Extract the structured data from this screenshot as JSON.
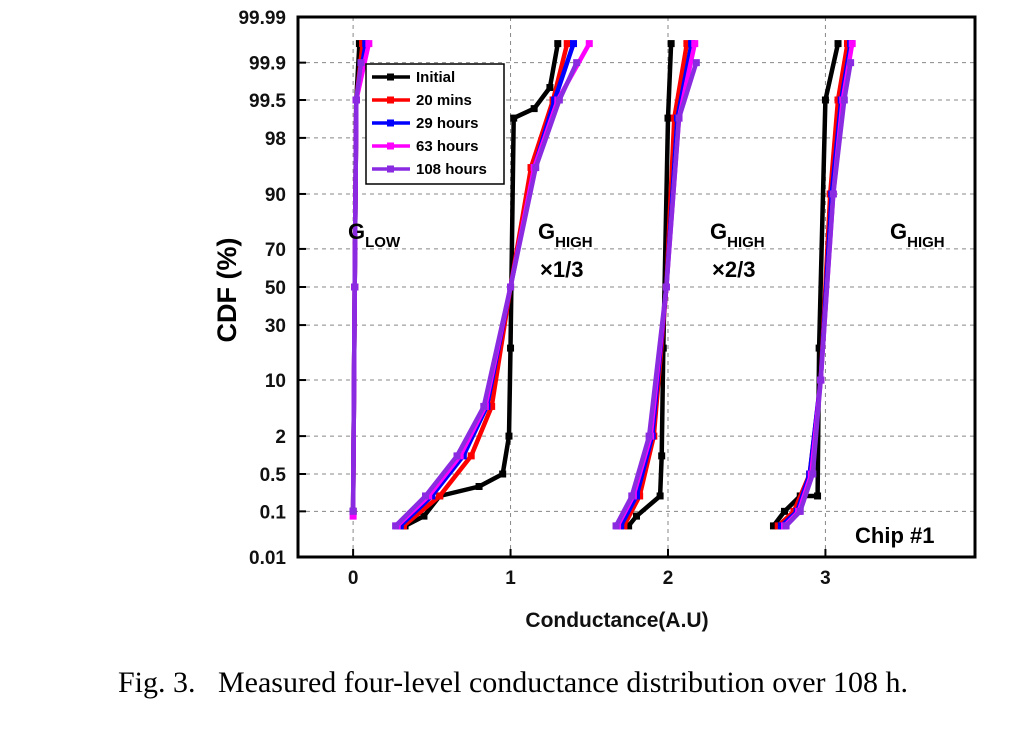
{
  "caption": "Fig. 3.   Measured four-level conductance distribution over 108 h.",
  "chart_data": {
    "type": "line",
    "title": "",
    "xlabel": "Conductance(A.U)",
    "ylabel": "CDF (%)",
    "yscale": "probability (normal)",
    "xlim": [
      -0.35,
      3.95
    ],
    "ylim": [
      0.01,
      99.99
    ],
    "x_ticks": [
      "0",
      "1",
      "2",
      "3"
    ],
    "y_ticks": [
      "0.01",
      "0.1",
      "0.5",
      "2",
      "10",
      "30",
      "50",
      "70",
      "90",
      "98",
      "99.5",
      "99.9",
      "99.99"
    ],
    "grid": "dashed",
    "legend_position": "top-left",
    "annotations": [
      {
        "main": "G",
        "sub": "LOW",
        "line2": ""
      },
      {
        "main": "G",
        "sub": "HIGH",
        "line2": "×1/3"
      },
      {
        "main": "G",
        "sub": "HIGH",
        "line2": "×2/3"
      },
      {
        "main": "G",
        "sub": "HIGH",
        "line2": ""
      },
      {
        "main": "Chip #1",
        "sub": "",
        "line2": ""
      }
    ],
    "series": [
      {
        "name": "Initial",
        "color": "#000000",
        "levels": [
          [
            [
              0.0,
              0.1
            ],
            [
              0.01,
              50
            ],
            [
              0.02,
              99.5
            ],
            [
              0.04,
              99.96
            ]
          ],
          [
            [
              0.33,
              0.05
            ],
            [
              0.45,
              0.08
            ],
            [
              0.55,
              0.2
            ],
            [
              0.8,
              0.3
            ],
            [
              0.95,
              0.5
            ],
            [
              0.99,
              2
            ],
            [
              1.0,
              20
            ],
            [
              1.02,
              99
            ],
            [
              1.15,
              99.3
            ],
            [
              1.25,
              99.7
            ],
            [
              1.3,
              99.96
            ]
          ],
          [
            [
              1.75,
              0.05
            ],
            [
              1.8,
              0.08
            ],
            [
              1.95,
              0.2
            ],
            [
              1.96,
              1
            ],
            [
              1.97,
              20
            ],
            [
              2.0,
              99
            ],
            [
              2.02,
              99.96
            ]
          ],
          [
            [
              2.67,
              0.05
            ],
            [
              2.74,
              0.1
            ],
            [
              2.84,
              0.2
            ],
            [
              2.95,
              0.2
            ],
            [
              2.96,
              20
            ],
            [
              3.0,
              99.5
            ],
            [
              3.08,
              99.96
            ]
          ]
        ]
      },
      {
        "name": "20 mins",
        "color": "#ff0000",
        "levels": [
          [
            [
              0.0,
              0.1
            ],
            [
              0.01,
              50
            ],
            [
              0.02,
              99.5
            ],
            [
              0.06,
              99.96
            ]
          ],
          [
            [
              0.32,
              0.05
            ],
            [
              0.55,
              0.2
            ],
            [
              0.75,
              1
            ],
            [
              0.88,
              5
            ],
            [
              1.0,
              50
            ],
            [
              1.13,
              95
            ],
            [
              1.27,
              99.5
            ],
            [
              1.36,
              99.96
            ]
          ],
          [
            [
              1.72,
              0.05
            ],
            [
              1.82,
              0.2
            ],
            [
              1.91,
              2
            ],
            [
              1.99,
              50
            ],
            [
              2.04,
              99
            ],
            [
              2.12,
              99.96
            ]
          ],
          [
            [
              2.7,
              0.05
            ],
            [
              2.8,
              0.1
            ],
            [
              2.9,
              0.5
            ],
            [
              2.97,
              10
            ],
            [
              3.03,
              90
            ],
            [
              3.08,
              99.5
            ],
            [
              3.14,
              99.96
            ]
          ]
        ]
      },
      {
        "name": "29 hours",
        "color": "#0000ff",
        "levels": [
          [
            [
              0.0,
              0.1
            ],
            [
              0.01,
              50
            ],
            [
              0.02,
              99.5
            ],
            [
              0.08,
              99.96
            ]
          ],
          [
            [
              0.3,
              0.05
            ],
            [
              0.5,
              0.2
            ],
            [
              0.7,
              1
            ],
            [
              0.85,
              5
            ],
            [
              1.0,
              50
            ],
            [
              1.15,
              95
            ],
            [
              1.28,
              99.5
            ],
            [
              1.4,
              99.96
            ]
          ],
          [
            [
              1.7,
              0.05
            ],
            [
              1.8,
              0.2
            ],
            [
              1.9,
              2
            ],
            [
              1.99,
              50
            ],
            [
              2.06,
              99
            ],
            [
              2.15,
              99.96
            ]
          ],
          [
            [
              2.72,
              0.05
            ],
            [
              2.82,
              0.1
            ],
            [
              2.9,
              0.5
            ],
            [
              2.97,
              10
            ],
            [
              3.04,
              90
            ],
            [
              3.1,
              99.5
            ],
            [
              3.16,
              99.96
            ]
          ]
        ]
      },
      {
        "name": "63 hours",
        "color": "#ff00ff",
        "levels": [
          [
            [
              0.0,
              0.08
            ],
            [
              0.01,
              50
            ],
            [
              0.02,
              99.5
            ],
            [
              0.1,
              99.96
            ]
          ],
          [
            [
              0.28,
              0.05
            ],
            [
              0.48,
              0.2
            ],
            [
              0.68,
              1
            ],
            [
              0.84,
              5
            ],
            [
              1.0,
              50
            ],
            [
              1.15,
              95
            ],
            [
              1.3,
              99.5
            ],
            [
              1.5,
              99.96
            ]
          ],
          [
            [
              1.68,
              0.05
            ],
            [
              1.78,
              0.2
            ],
            [
              1.89,
              2
            ],
            [
              1.99,
              50
            ],
            [
              2.07,
              99
            ],
            [
              2.17,
              99.96
            ]
          ],
          [
            [
              2.74,
              0.05
            ],
            [
              2.83,
              0.1
            ],
            [
              2.91,
              0.5
            ],
            [
              2.97,
              10
            ],
            [
              3.05,
              90
            ],
            [
              3.11,
              99.5
            ],
            [
              3.17,
              99.96
            ]
          ]
        ]
      },
      {
        "name": "108 hours",
        "color": "#8a2be2",
        "levels": [
          [
            [
              0.0,
              0.1
            ],
            [
              0.01,
              50
            ],
            [
              0.02,
              99.5
            ],
            [
              0.05,
              99.9
            ]
          ],
          [
            [
              0.27,
              0.05
            ],
            [
              0.46,
              0.2
            ],
            [
              0.66,
              1
            ],
            [
              0.83,
              5
            ],
            [
              1.0,
              50
            ],
            [
              1.16,
              95
            ],
            [
              1.31,
              99.5
            ],
            [
              1.42,
              99.9
            ]
          ],
          [
            [
              1.67,
              0.05
            ],
            [
              1.77,
              0.2
            ],
            [
              1.88,
              2
            ],
            [
              1.99,
              50
            ],
            [
              2.07,
              99
            ],
            [
              2.18,
              99.9
            ]
          ],
          [
            [
              2.75,
              0.05
            ],
            [
              2.84,
              0.1
            ],
            [
              2.92,
              0.5
            ],
            [
              2.97,
              10
            ],
            [
              3.05,
              90
            ],
            [
              3.12,
              99.5
            ],
            [
              3.16,
              99.9
            ]
          ]
        ]
      }
    ]
  }
}
